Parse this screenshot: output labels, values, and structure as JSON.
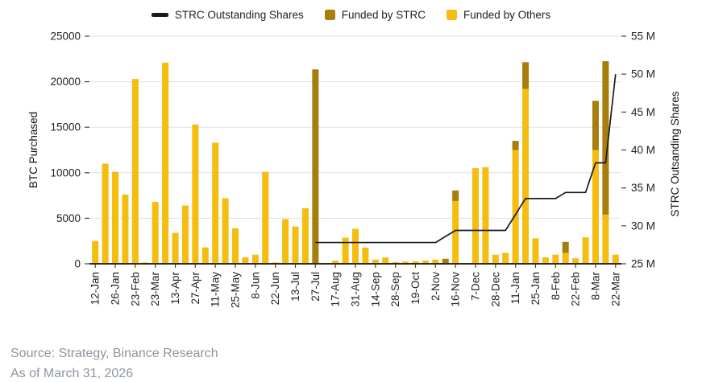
{
  "legend": {
    "line_label": "STRC Outstanding Shares",
    "strc_label": "Funded by STRC",
    "others_label": "Funded by Others"
  },
  "footer": {
    "source": "Source: Strategy, Binance Research",
    "as_of": "As of March 31, 2026"
  },
  "colors": {
    "yellow": "#F4BD10",
    "dark_gold": "#A67E0C",
    "line": "#1b1b1b",
    "grid": "#e0e0e0",
    "axis": "#444444",
    "x_axis_line": "#2e2a1c"
  },
  "chart_data": {
    "type": "bar",
    "title": "",
    "grid": true,
    "legend_position": "top",
    "left_axis": {
      "label": "BTC Purchased",
      "ticks": [
        0,
        5000,
        10000,
        15000,
        20000,
        25000
      ],
      "range": [
        0,
        25000
      ]
    },
    "right_axis": {
      "label": "STRC Outsanding Shares",
      "ticks": [
        "25 M",
        "30 M",
        "35 M",
        "40 M",
        "45 M",
        "50 M",
        "55 M"
      ],
      "tick_values": [
        25,
        30,
        35,
        40,
        45,
        50,
        55
      ],
      "range": [
        25,
        55
      ]
    },
    "x_tick_labels": [
      "12-Jan",
      "26-Jan",
      "23-Feb",
      "23-Mar",
      "13-Apr",
      "27-Apr",
      "11-May",
      "25-May",
      "8-Jun",
      "22-Jun",
      "13-Jul",
      "27-Jul",
      "17-Aug",
      "31-Aug",
      "14-Sep",
      "28-Sep",
      "19-Oct",
      "2-Nov",
      "16-Nov",
      "7-Dec",
      "28-Dec",
      "11-Jan",
      "25-Jan",
      "8-Feb",
      "22-Feb",
      "8-Mar",
      "22-Mar"
    ],
    "label_every": 2,
    "series": [
      {
        "name": "Funded by Others",
        "color_key": "yellow",
        "values": [
          2500,
          11000,
          10100,
          7600,
          20300,
          150,
          6800,
          22100,
          3400,
          6400,
          15300,
          1800,
          13300,
          7200,
          3900,
          700,
          1000,
          10100,
          150,
          4900,
          4100,
          6100,
          0,
          100,
          350,
          2870,
          3840,
          1780,
          460,
          690,
          200,
          230,
          280,
          350,
          460,
          0,
          6900,
          80,
          10500,
          10600,
          1000,
          1200,
          12500,
          19200,
          2800,
          700,
          1000,
          1200,
          600,
          2900,
          12500,
          5400,
          1000
        ]
      },
      {
        "name": "Funded by STRC",
        "color_key": "dark_gold",
        "values": [
          0,
          0,
          0,
          0,
          0,
          0,
          0,
          0,
          0,
          0,
          0,
          0,
          0,
          0,
          0,
          0,
          0,
          0,
          0,
          0,
          0,
          0,
          21350,
          0,
          0,
          0,
          0,
          0,
          0,
          0,
          0,
          0,
          0,
          0,
          0,
          550,
          1150,
          0,
          0,
          0,
          0,
          0,
          1000,
          2950,
          0,
          0,
          0,
          1200,
          0,
          0,
          5400,
          16850,
          0
        ]
      }
    ],
    "line_series": {
      "name": "STRC Outstanding Shares",
      "unit": "M",
      "points": [
        [
          22,
          27.8
        ],
        [
          34,
          27.8
        ],
        [
          36,
          29.4
        ],
        [
          41,
          29.4
        ],
        [
          43,
          33.6
        ],
        [
          46,
          33.6
        ],
        [
          47,
          34.4
        ],
        [
          49,
          34.4
        ],
        [
          50,
          38.3
        ],
        [
          51,
          38.3
        ],
        [
          52,
          50.0
        ]
      ]
    }
  }
}
